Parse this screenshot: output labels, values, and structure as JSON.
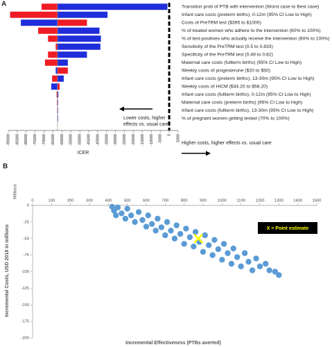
{
  "chart_data": [
    {
      "type": "tornado",
      "panel": "A",
      "categories": [
        "Transition prob of PTB with intervention (Worst case to Best case)",
        "Infant care costs (preterm births), 0-12m (95% CI Low to High)",
        "Costs of PreTRM test ($395 to $1000)",
        "% of treated women who adhere to the intervention (60% to 100%)",
        "% of test-positives who actually receive the intervention (60% to 100%)",
        "Sensitivity of the PreTRM test (0.5 to 0.833)",
        "Specificity of the PreTRM test (0.49 to 0.82)",
        "Maternal care costs (fullterm births) (95% CI Low to High)",
        "Weekly costs of progesterone ($20 to $50)",
        "Infant care costs (preterm births), 13-30m (95% CI Low to High)",
        "Weekly costs of HICM ($34.20 to $58.20)",
        "Infant care costs (fullterm births), 0-12m (95% CI Low to High)",
        "Maternal care costs (preterm births) (95% CI Low to High)",
        "Infant care costs (fullterm births), 13-30m (95% CI Low to High)",
        "% of pregnant women getting tested (70% to 100%)"
      ],
      "series": [
        {
          "color": "#ee1c25",
          "values": [
            -71400,
            -89000,
            -46000,
            -73300,
            -67800,
            -63500,
            -67800,
            -69500,
            -56700,
            -65500,
            -61300,
            -63000,
            -62800,
            -62700,
            -62600
          ]
        },
        {
          "color": "#1f2ddb",
          "values": [
            -1000,
            -34500,
            -83000,
            -39000,
            -38200,
            -38500,
            -46000,
            -56700,
            -63500,
            -59000,
            -66000,
            -62000,
            -62200,
            -62300,
            -62400
          ]
        }
      ],
      "base": -62500,
      "reference_line": 0,
      "xlim": [
        -90000,
        5000
      ],
      "xticks": [
        -90000,
        -85000,
        -80000,
        -75000,
        -70000,
        -65000,
        -60000,
        -55000,
        -50000,
        -45000,
        -40000,
        -35000,
        -30000,
        -25000,
        -20000,
        -15000,
        -10000,
        -5000,
        0,
        5000
      ],
      "xlabel": "ICER",
      "annotation_left": [
        "Lower costs, higher",
        "effects vs. usual care"
      ],
      "annotation_right": "Higher costs, higher effects vs. usual care"
    },
    {
      "type": "scatter",
      "panel": "B",
      "series": [
        {
          "color": "#5b9bd5",
          "x": [
            420,
            430,
            440,
            450,
            470,
            490,
            500,
            520,
            540,
            560,
            580,
            600,
            610,
            630,
            650,
            660,
            680,
            700,
            710,
            730,
            750,
            760,
            780,
            800,
            810,
            830,
            850,
            860,
            880,
            900,
            910,
            930,
            950,
            960,
            980,
            1000,
            1010,
            1030,
            1050,
            1060,
            1080,
            1100,
            1120,
            1140,
            1160,
            1180,
            1200,
            1230,
            1250,
            1280,
            1300
          ],
          "values": [
            -2,
            -8,
            -15,
            -3,
            -12,
            -20,
            -5,
            -15,
            -25,
            -10,
            -22,
            -32,
            -15,
            -28,
            -38,
            -20,
            -33,
            -45,
            -25,
            -38,
            -50,
            -30,
            -43,
            -58,
            -35,
            -48,
            -62,
            -40,
            -55,
            -70,
            -45,
            -60,
            -75,
            -52,
            -66,
            -82,
            -58,
            -72,
            -88,
            -65,
            -78,
            -92,
            -72,
            -85,
            -98,
            -80,
            -92,
            -88,
            -98,
            -100,
            -105
          ]
        },
        {
          "color": "#ffff00",
          "marker": "x",
          "x": [
            875
          ],
          "values": [
            -50
          ]
        }
      ],
      "annotation": "X = Point estimate",
      "xlim": [
        0,
        1500
      ],
      "xticks": [
        0,
        100,
        200,
        300,
        400,
        500,
        600,
        700,
        800,
        900,
        1000,
        1100,
        1200,
        1300,
        1400,
        1500
      ],
      "ylim": [
        0,
        -200
      ],
      "yticks": [
        0,
        -25,
        -50,
        -75,
        -100,
        -125,
        -150,
        -175,
        -200
      ],
      "yunit": "Millions",
      "xlabel": "Incremental Effectiveness (PTBs averted)",
      "ylabel": "Incremental Costs, USD 2018 in millions"
    }
  ]
}
